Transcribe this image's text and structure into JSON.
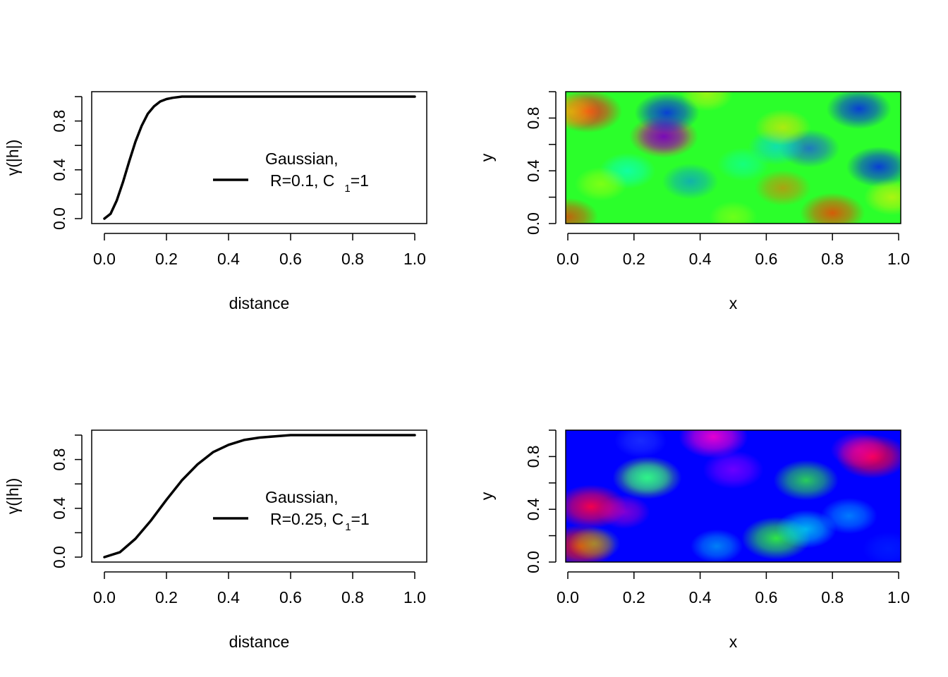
{
  "chart_data": [
    {
      "id": "variogram-top",
      "type": "line",
      "xlabel": "distance",
      "ylabel": "γ(|h|)",
      "xlim": [
        0,
        1
      ],
      "ylim": [
        0,
        1
      ],
      "x_ticks": [
        "0.0",
        "0.2",
        "0.4",
        "0.6",
        "0.8",
        "1.0"
      ],
      "y_ticks": [
        "0.0",
        "0.4",
        "0.8"
      ],
      "grid": false,
      "legend_position": "right",
      "legend": {
        "line1": "Gaussian,",
        "line2_main": "R=0.1, C",
        "line2_sub": "1",
        "line2_end": "=1"
      },
      "series": [
        {
          "name": "Gaussian, R=0.1, C1=1",
          "color": "#000000",
          "x": [
            0,
            0.02,
            0.04,
            0.06,
            0.08,
            0.1,
            0.12,
            0.14,
            0.16,
            0.18,
            0.2,
            0.22,
            0.25,
            0.3,
            0.4,
            0.6,
            0.8,
            1.0
          ],
          "y": [
            0,
            0.04,
            0.15,
            0.3,
            0.47,
            0.63,
            0.76,
            0.86,
            0.92,
            0.96,
            0.98,
            0.99,
            1.0,
            1.0,
            1.0,
            1.0,
            1.0,
            1.0
          ]
        }
      ]
    },
    {
      "id": "field-top",
      "type": "heatmap",
      "xlabel": "x",
      "ylabel": "y",
      "xlim": [
        0,
        1
      ],
      "ylim": [
        0,
        1
      ],
      "x_ticks": [
        "0.0",
        "0.2",
        "0.4",
        "0.6",
        "0.8",
        "1.0"
      ],
      "y_ticks": [
        "0.0",
        "0.4",
        "0.8"
      ],
      "colormap": "rainbow (red-yellow-green-cyan-blue-magenta)",
      "background_color": "#2bff2b",
      "blobs": [
        {
          "x": 0.06,
          "y": 0.85,
          "color": "#ff1a1a",
          "strength": 0.9
        },
        {
          "x": 0.01,
          "y": 0.85,
          "color": "#ffcc00",
          "strength": 0.6
        },
        {
          "x": 0.29,
          "y": 0.66,
          "color": "#ff0066",
          "strength": 0.9
        },
        {
          "x": 0.29,
          "y": 0.66,
          "color": "#1a00ff",
          "strength": 0.55
        },
        {
          "x": 0.3,
          "y": 0.84,
          "color": "#0010ff",
          "strength": 0.8
        },
        {
          "x": 0.88,
          "y": 0.87,
          "color": "#0010ff",
          "strength": 0.8
        },
        {
          "x": 0.94,
          "y": 0.43,
          "color": "#0010ff",
          "strength": 0.8
        },
        {
          "x": 0.73,
          "y": 0.57,
          "color": "#1a40ff",
          "strength": 0.7
        },
        {
          "x": 0.63,
          "y": 0.58,
          "color": "#00ccff",
          "strength": 0.6
        },
        {
          "x": 0.37,
          "y": 0.32,
          "color": "#0080ff",
          "strength": 0.6
        },
        {
          "x": 0.18,
          "y": 0.4,
          "color": "#00ffee",
          "strength": 0.6
        },
        {
          "x": 0.53,
          "y": 0.45,
          "color": "#00ffcc",
          "strength": 0.5
        },
        {
          "x": 0.8,
          "y": 0.08,
          "color": "#ff3300",
          "strength": 0.8
        },
        {
          "x": 0.65,
          "y": 0.27,
          "color": "#ff6600",
          "strength": 0.6
        },
        {
          "x": 0.65,
          "y": 0.73,
          "color": "#ffdd00",
          "strength": 0.6
        },
        {
          "x": 0.42,
          "y": 0.98,
          "color": "#ffee00",
          "strength": 0.5
        },
        {
          "x": 0.1,
          "y": 0.3,
          "color": "#ccff00",
          "strength": 0.5
        },
        {
          "x": 0.0,
          "y": 0.05,
          "color": "#ff2200",
          "strength": 0.7
        },
        {
          "x": 0.98,
          "y": 0.2,
          "color": "#ffee00",
          "strength": 0.6
        },
        {
          "x": 0.5,
          "y": 0.05,
          "color": "#ccff00",
          "strength": 0.4
        }
      ]
    },
    {
      "id": "variogram-bottom",
      "type": "line",
      "xlabel": "distance",
      "ylabel": "γ(|h|)",
      "xlim": [
        0,
        1
      ],
      "ylim": [
        0,
        1
      ],
      "x_ticks": [
        "0.0",
        "0.2",
        "0.4",
        "0.6",
        "0.8",
        "1.0"
      ],
      "y_ticks": [
        "0.0",
        "0.4",
        "0.8"
      ],
      "grid": false,
      "legend_position": "right",
      "legend": {
        "line1": "Gaussian,",
        "line2_main": "R=0.25, C",
        "line2_sub": "1",
        "line2_end": "=1"
      },
      "series": [
        {
          "name": "Gaussian, R=0.25, C1=1",
          "color": "#000000",
          "x": [
            0,
            0.05,
            0.1,
            0.15,
            0.2,
            0.25,
            0.3,
            0.35,
            0.4,
            0.45,
            0.5,
            0.55,
            0.6,
            0.7,
            0.8,
            1.0
          ],
          "y": [
            0,
            0.04,
            0.15,
            0.3,
            0.47,
            0.63,
            0.76,
            0.86,
            0.92,
            0.96,
            0.98,
            0.99,
            1.0,
            1.0,
            1.0,
            1.0
          ]
        }
      ]
    },
    {
      "id": "field-bottom",
      "type": "heatmap",
      "xlabel": "x",
      "ylabel": "y",
      "xlim": [
        0,
        1
      ],
      "ylim": [
        0,
        1
      ],
      "x_ticks": [
        "0.0",
        "0.2",
        "0.4",
        "0.6",
        "0.8",
        "1.0"
      ],
      "y_ticks": [
        "0.0",
        "0.4",
        "0.8"
      ],
      "colormap": "rainbow (red-yellow-green-cyan-blue-magenta)",
      "background_color": "#0000ff",
      "blobs": [
        {
          "x": 0.44,
          "y": 0.95,
          "color": "#ff00cc",
          "strength": 0.9
        },
        {
          "x": 0.5,
          "y": 0.7,
          "color": "#9900ff",
          "strength": 0.7
        },
        {
          "x": 0.92,
          "y": 0.8,
          "color": "#ff0033",
          "strength": 0.95
        },
        {
          "x": 0.88,
          "y": 0.85,
          "color": "#ff00aa",
          "strength": 0.6
        },
        {
          "x": 0.24,
          "y": 0.64,
          "color": "#66ff33",
          "strength": 0.9
        },
        {
          "x": 0.24,
          "y": 0.64,
          "color": "#00ffcc",
          "strength": 0.5
        },
        {
          "x": 0.07,
          "y": 0.42,
          "color": "#ff0044",
          "strength": 0.95
        },
        {
          "x": 0.17,
          "y": 0.38,
          "color": "#ff00aa",
          "strength": 0.5
        },
        {
          "x": 0.04,
          "y": 0.12,
          "color": "#ff1a00",
          "strength": 0.9
        },
        {
          "x": 0.08,
          "y": 0.14,
          "color": "#aaff00",
          "strength": 0.5
        },
        {
          "x": 0.72,
          "y": 0.62,
          "color": "#33ff33",
          "strength": 0.8
        },
        {
          "x": 0.63,
          "y": 0.18,
          "color": "#33ff33",
          "strength": 0.9
        },
        {
          "x": 0.72,
          "y": 0.25,
          "color": "#00ffee",
          "strength": 0.7
        },
        {
          "x": 0.85,
          "y": 0.35,
          "color": "#00ccff",
          "strength": 0.6
        },
        {
          "x": 0.45,
          "y": 0.12,
          "color": "#00ffee",
          "strength": 0.5
        },
        {
          "x": 0.97,
          "y": 0.1,
          "color": "#0033ff",
          "strength": 0.5
        },
        {
          "x": 0.22,
          "y": 0.92,
          "color": "#3355ff",
          "strength": 0.5
        }
      ]
    }
  ]
}
